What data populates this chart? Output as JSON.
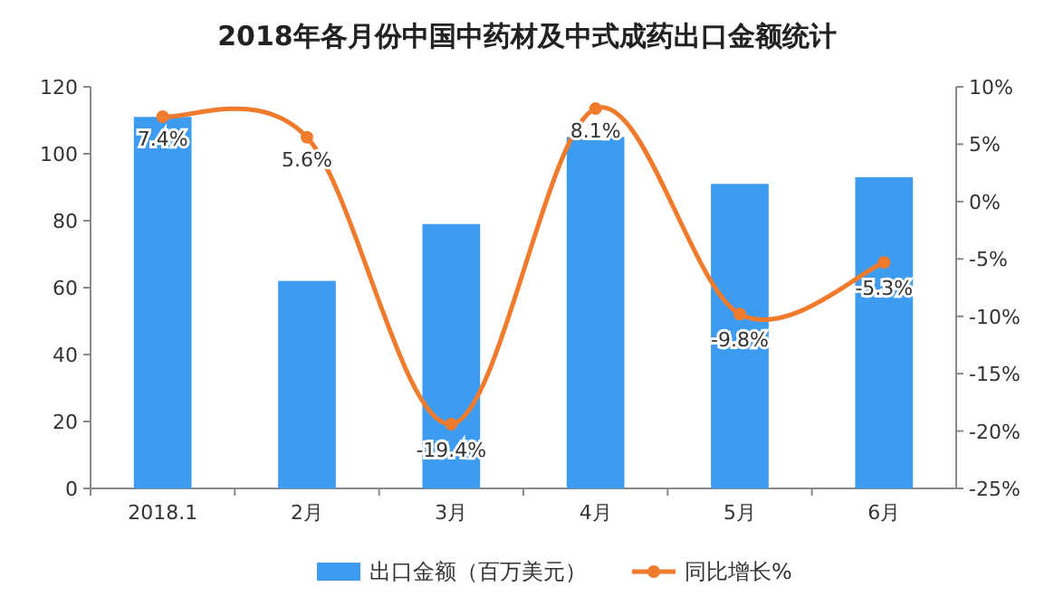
{
  "chart_data": {
    "type": "bar",
    "title": "2018年各月份中国中药材及中式成药出口金额统计",
    "categories": [
      "2018.1",
      "2月",
      "3月",
      "4月",
      "5月",
      "6月"
    ],
    "series": [
      {
        "name": "出口金额（百万美元）",
        "color": "#3d9cf0",
        "values": [
          111,
          62,
          79,
          105,
          91,
          93
        ]
      },
      {
        "name": "同比增长%",
        "type": "line",
        "axis": "y2",
        "color": "#f07b2c",
        "values": [
          7.4,
          5.6,
          -19.4,
          8.1,
          -9.8,
          -5.3
        ],
        "value_labels": [
          "7.4%",
          "5.6%",
          "-19.4%",
          "8.1%",
          "-9.8%",
          "-5.3%"
        ]
      }
    ],
    "ylim": [
      0,
      120
    ],
    "yticks": [
      0,
      20,
      40,
      60,
      80,
      100,
      120
    ],
    "y2lim": [
      -25,
      10
    ],
    "y2ticks": [
      {
        "value": -25,
        "label": "-25%"
      },
      {
        "value": -20,
        "label": "-20%"
      },
      {
        "value": -15,
        "label": "-15%"
      },
      {
        "value": -10,
        "label": "-10%"
      },
      {
        "value": -5,
        "label": "-5%"
      },
      {
        "value": 0,
        "label": "0%"
      },
      {
        "value": 5,
        "label": "5%"
      },
      {
        "value": 10,
        "label": "10%"
      }
    ],
    "marker": "circle",
    "legend": "bottom",
    "grid": false
  }
}
